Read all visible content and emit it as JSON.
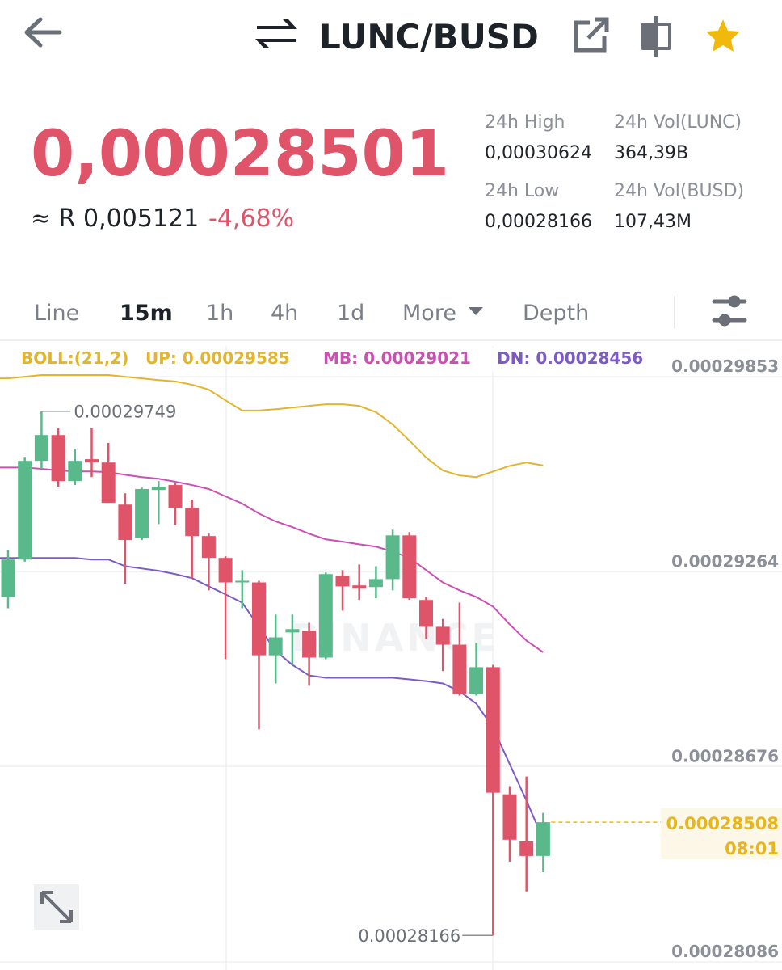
{
  "header": {
    "pair": "LUNC/BUSD"
  },
  "ticker": {
    "price": "0,00028501",
    "fiat": "≈ R 0,005121",
    "change": "-4,68%",
    "stats": [
      {
        "label": "24h High",
        "value": "0,00030624"
      },
      {
        "label": "24h Vol(LUNC)",
        "value": "364,39B"
      },
      {
        "label": "24h Low",
        "value": "0,00028166"
      },
      {
        "label": "24h Vol(BUSD)",
        "value": "107,43M"
      }
    ]
  },
  "tabs": [
    "Line",
    "15m",
    "1h",
    "4h",
    "1d",
    "More",
    "Depth"
  ],
  "active_tab": 1,
  "chart": {
    "type": "candlestick",
    "indicator": "BOLL:(21,2)",
    "watermark": "BINANCE",
    "up_color": "#59b98a",
    "down_color": "#e0546a",
    "grid": true,
    "ylim": [
      0.00028086,
      0.00029946
    ],
    "yticks": [
      0.00029853,
      0.00029264,
      0.00028676,
      0.00028086
    ],
    "max_label": 0.00029749,
    "min_label": 0.00028166,
    "last_price": 0.00028508,
    "countdown": "08:01",
    "open": [
      0.00029188,
      0.00029301,
      0.00029599,
      0.00029677,
      0.00029538,
      0.00029604,
      0.00029594,
      0.00029467,
      0.00029367,
      0.00029511,
      0.00029526,
      0.00029457,
      0.00029372,
      0.00029306,
      0.00029232,
      0.00029232,
      0.00029012,
      0.00029081,
      0.00029086,
      0.00029005,
      0.00029252,
      0.00029223,
      0.00029218,
      0.00029242,
      0.00029374,
      0.00029179,
      0.00029098,
      0.00029044,
      0.00028895,
      0.00028976,
      0.00028592,
      0.0002845,
      0.00028406
    ],
    "high": [
      0.0002933,
      0.00029611,
      0.00029749,
      0.00029697,
      0.00029636,
      0.00029697,
      0.00029653,
      0.00029501,
      0.00029518,
      0.00029538,
      0.00029531,
      0.00029482,
      0.00029379,
      0.00029311,
      0.00029269,
      0.00029237,
      0.00029135,
      0.00029135,
      0.0002911,
      0.00029262,
      0.00029269,
      0.00029286,
      0.00029281,
      0.00029391,
      0.00029384,
      0.00029188,
      0.00029122,
      0.00029171,
      0.00029049,
      0.00028983,
      0.00028617,
      0.00028646,
      0.00028536
    ],
    "low": [
      0.00029154,
      0.00029295,
      0.00029575,
      0.00029521,
      0.00029526,
      0.0002955,
      0.00029472,
      0.00029228,
      0.0002936,
      0.00029408,
      0.00029404,
      0.00029245,
      0.00029208,
      0.00029,
      0.00029154,
      0.00028788,
      0.00028927,
      0.00028983,
      0.0002892,
      0.00029,
      0.00029147,
      0.00029179,
      0.00029184,
      0.00029208,
      0.00029179,
      0.00029061,
      0.00028964,
      0.0002889,
      0.0002889,
      0.00028166,
      0.00028389,
      0.00028299,
      0.00028357
    ],
    "close": [
      0.00029301,
      0.00029599,
      0.00029677,
      0.00029538,
      0.00029599,
      0.00029594,
      0.00029472,
      0.0002936,
      0.00029514,
      0.00029521,
      0.00029457,
      0.00029372,
      0.00029306,
      0.00029232,
      0.00029237,
      0.00029012,
      0.00029066,
      0.00029091,
      0.00029005,
      0.00029257,
      0.0002922,
      0.00029213,
      0.00029242,
      0.00029374,
      0.00029184,
      0.00029098,
      0.00029044,
      0.00028895,
      0.00028976,
      0.00028597,
      0.00028455,
      0.00028406,
      0.00028508
    ],
    "boll": [
      {
        "name": "UP:",
        "value": 0.00029585,
        "color": "#e3b52e",
        "values": [
          0.00029848,
          0.00029853,
          0.00029858,
          0.00029858,
          0.00029858,
          0.00029858,
          0.00029858,
          0.00029853,
          0.00029848,
          0.00029843,
          0.00029839,
          0.00029829,
          0.00029814,
          0.00029782,
          0.00029751,
          0.00029751,
          0.00029755,
          0.0002976,
          0.00029765,
          0.0002977,
          0.0002977,
          0.00029765,
          0.00029746,
          0.00029709,
          0.0002966,
          0.00029609,
          0.0002957,
          0.00029555,
          0.0002955,
          0.00029567,
          0.00029584,
          0.00029594,
          0.00029585
        ]
      },
      {
        "name": "MB:",
        "value": 0.00029021,
        "color": "#cc4fb4",
        "values": [
          0.00029579,
          0.00029579,
          0.00029575,
          0.0002957,
          0.00029567,
          0.00029567,
          0.00029565,
          0.00029557,
          0.0002955,
          0.00029545,
          0.00029536,
          0.00029526,
          0.00029514,
          0.00029492,
          0.0002947,
          0.0002944,
          0.00029416,
          0.00029399,
          0.00029379,
          0.00029362,
          0.00029355,
          0.00029347,
          0.0002934,
          0.00029325,
          0.00029306,
          0.00029269,
          0.00029232,
          0.00029208,
          0.00029188,
          0.00029159,
          0.00029105,
          0.00029056,
          0.00029021
        ]
      },
      {
        "name": "DN:",
        "value": 0.00028456,
        "color": "#7c5cc4",
        "values": [
          0.00029306,
          0.00029306,
          0.00029306,
          0.00029306,
          0.00029306,
          0.00029301,
          0.00029301,
          0.00029281,
          0.00029274,
          0.00029267,
          0.00029257,
          0.00029245,
          0.0002922,
          0.00029196,
          0.00029171,
          0.00029098,
          0.00029025,
          0.00028983,
          0.00028951,
          0.00028944,
          0.00028944,
          0.00028944,
          0.00028944,
          0.00028944,
          0.00028939,
          0.00028934,
          0.00028927,
          0.00028903,
          0.00028866,
          0.00028793,
          0.00028683,
          0.00028573,
          0.00028456
        ]
      }
    ]
  }
}
